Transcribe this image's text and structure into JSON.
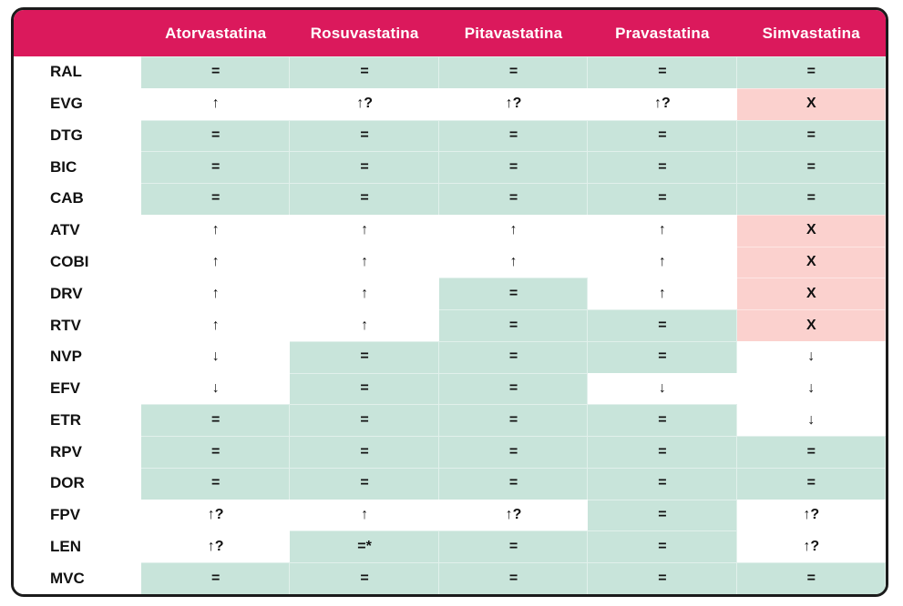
{
  "colors": {
    "header_bg": "#DB195C",
    "header_text": "#FFFFFF",
    "cell_green": "#C8E4DA",
    "cell_red": "#FBD1CE",
    "cell_white": "#FFFFFF",
    "border": "#1B1B1B",
    "text": "#111111"
  },
  "chart_data": {
    "type": "table",
    "title": "",
    "corner_label": "",
    "columns": [
      "Atorvastatina",
      "Rosuvastatina",
      "Pitavastatina",
      "Pravastatina",
      "Simvastatina"
    ],
    "legend_position": "none",
    "rows": [
      {
        "label": "RAL",
        "cells": [
          {
            "t": "=",
            "bg": "green"
          },
          {
            "t": "=",
            "bg": "green"
          },
          {
            "t": "=",
            "bg": "green"
          },
          {
            "t": "=",
            "bg": "green"
          },
          {
            "t": "=",
            "bg": "green"
          }
        ]
      },
      {
        "label": "EVG",
        "cells": [
          {
            "t": "↑",
            "bg": "white"
          },
          {
            "t": "↑?",
            "bg": "white"
          },
          {
            "t": "↑?",
            "bg": "white"
          },
          {
            "t": "↑?",
            "bg": "white"
          },
          {
            "t": "X",
            "bg": "red"
          }
        ]
      },
      {
        "label": "DTG",
        "cells": [
          {
            "t": "=",
            "bg": "green"
          },
          {
            "t": "=",
            "bg": "green"
          },
          {
            "t": "=",
            "bg": "green"
          },
          {
            "t": "=",
            "bg": "green"
          },
          {
            "t": "=",
            "bg": "green"
          }
        ]
      },
      {
        "label": "BIC",
        "cells": [
          {
            "t": "=",
            "bg": "green"
          },
          {
            "t": "=",
            "bg": "green"
          },
          {
            "t": "=",
            "bg": "green"
          },
          {
            "t": "=",
            "bg": "green"
          },
          {
            "t": "=",
            "bg": "green"
          }
        ]
      },
      {
        "label": "CAB",
        "cells": [
          {
            "t": "=",
            "bg": "green"
          },
          {
            "t": "=",
            "bg": "green"
          },
          {
            "t": "=",
            "bg": "green"
          },
          {
            "t": "=",
            "bg": "green"
          },
          {
            "t": "=",
            "bg": "green"
          }
        ]
      },
      {
        "label": "ATV",
        "cells": [
          {
            "t": "↑",
            "bg": "white"
          },
          {
            "t": "↑",
            "bg": "white"
          },
          {
            "t": "↑",
            "bg": "white"
          },
          {
            "t": "↑",
            "bg": "white"
          },
          {
            "t": "X",
            "bg": "red"
          }
        ]
      },
      {
        "label": "COBI",
        "cells": [
          {
            "t": "↑",
            "bg": "white"
          },
          {
            "t": "↑",
            "bg": "white"
          },
          {
            "t": "↑",
            "bg": "white"
          },
          {
            "t": "↑",
            "bg": "white"
          },
          {
            "t": "X",
            "bg": "red"
          }
        ]
      },
      {
        "label": "DRV",
        "cells": [
          {
            "t": "↑",
            "bg": "white"
          },
          {
            "t": "↑",
            "bg": "white"
          },
          {
            "t": "=",
            "bg": "green"
          },
          {
            "t": "↑",
            "bg": "white"
          },
          {
            "t": "X",
            "bg": "red"
          }
        ]
      },
      {
        "label": "RTV",
        "cells": [
          {
            "t": "↑",
            "bg": "white"
          },
          {
            "t": "↑",
            "bg": "white"
          },
          {
            "t": "=",
            "bg": "green"
          },
          {
            "t": "=",
            "bg": "green"
          },
          {
            "t": "X",
            "bg": "red"
          }
        ]
      },
      {
        "label": "NVP",
        "cells": [
          {
            "t": "↓",
            "bg": "white"
          },
          {
            "t": "=",
            "bg": "green"
          },
          {
            "t": "=",
            "bg": "green"
          },
          {
            "t": "=",
            "bg": "green"
          },
          {
            "t": "↓",
            "bg": "white"
          }
        ]
      },
      {
        "label": "EFV",
        "cells": [
          {
            "t": "↓",
            "bg": "white"
          },
          {
            "t": "=",
            "bg": "green"
          },
          {
            "t": "=",
            "bg": "green"
          },
          {
            "t": "↓",
            "bg": "white"
          },
          {
            "t": "↓",
            "bg": "white"
          }
        ]
      },
      {
        "label": "ETR",
        "cells": [
          {
            "t": "=",
            "bg": "green"
          },
          {
            "t": "=",
            "bg": "green"
          },
          {
            "t": "=",
            "bg": "green"
          },
          {
            "t": "=",
            "bg": "green"
          },
          {
            "t": "↓",
            "bg": "white"
          }
        ]
      },
      {
        "label": "RPV",
        "cells": [
          {
            "t": "=",
            "bg": "green"
          },
          {
            "t": "=",
            "bg": "green"
          },
          {
            "t": "=",
            "bg": "green"
          },
          {
            "t": "=",
            "bg": "green"
          },
          {
            "t": "=",
            "bg": "green"
          }
        ]
      },
      {
        "label": "DOR",
        "cells": [
          {
            "t": "=",
            "bg": "green"
          },
          {
            "t": "=",
            "bg": "green"
          },
          {
            "t": "=",
            "bg": "green"
          },
          {
            "t": "=",
            "bg": "green"
          },
          {
            "t": "=",
            "bg": "green"
          }
        ]
      },
      {
        "label": "FPV",
        "cells": [
          {
            "t": "↑?",
            "bg": "white"
          },
          {
            "t": "↑",
            "bg": "white"
          },
          {
            "t": "↑?",
            "bg": "white"
          },
          {
            "t": "=",
            "bg": "green"
          },
          {
            "t": "↑?",
            "bg": "white"
          }
        ]
      },
      {
        "label": "LEN",
        "cells": [
          {
            "t": "↑?",
            "bg": "white"
          },
          {
            "t": "=*",
            "bg": "green"
          },
          {
            "t": "=",
            "bg": "green"
          },
          {
            "t": "=",
            "bg": "green"
          },
          {
            "t": "↑?",
            "bg": "white"
          }
        ]
      },
      {
        "label": "MVC",
        "cells": [
          {
            "t": "=",
            "bg": "green"
          },
          {
            "t": "=",
            "bg": "green"
          },
          {
            "t": "=",
            "bg": "green"
          },
          {
            "t": "=",
            "bg": "green"
          },
          {
            "t": "=",
            "bg": "green"
          }
        ]
      }
    ]
  }
}
